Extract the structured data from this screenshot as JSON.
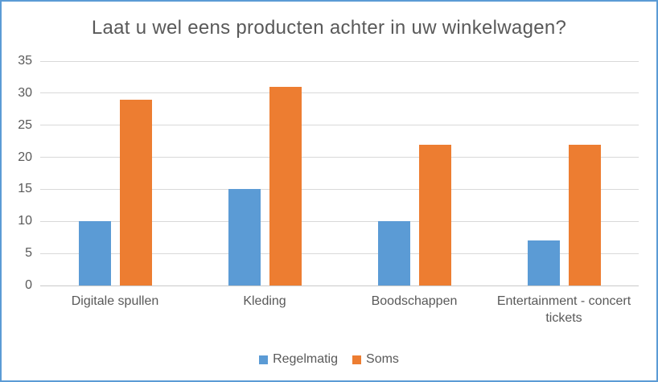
{
  "frame": {
    "border_color": "#5B9BD5",
    "background": "#FFFFFF",
    "text_color": "#595959"
  },
  "chart_data": {
    "type": "bar",
    "title": "Laat u wel eens producten achter in uw winkelwagen?",
    "categories": [
      "Digitale spullen",
      "Kleding",
      "Boodschappen",
      "Entertainment - concert tickets"
    ],
    "series": [
      {
        "name": "Regelmatig",
        "color": "#5B9BD5",
        "values": [
          10,
          15,
          10,
          7
        ]
      },
      {
        "name": "Soms",
        "color": "#ED7D31",
        "values": [
          29,
          31,
          22,
          22
        ]
      }
    ],
    "xlabel": "",
    "ylabel": "",
    "ylim": [
      0,
      35
    ],
    "yticks": [
      0,
      5,
      10,
      15,
      20,
      25,
      30,
      35
    ],
    "grid": true,
    "gridline_color": "#D9D9D9",
    "axisline_color": "#C9C9C9",
    "legend_position": "bottom"
  }
}
